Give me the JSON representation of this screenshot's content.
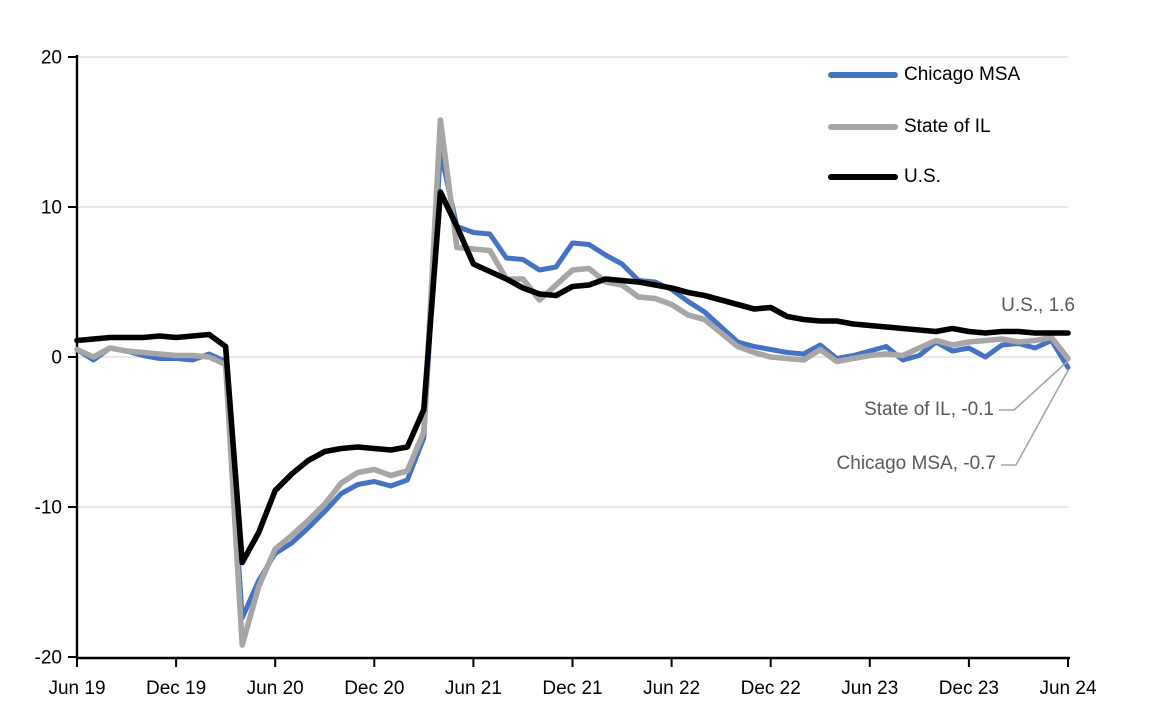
{
  "chart_data": {
    "type": "line",
    "title": "",
    "x_unit": "month",
    "x_range": [
      "Jun 2019",
      "Jun 2024"
    ],
    "x_tick_labels": [
      "Jun 19",
      "Dec 19",
      "Jun 20",
      "Dec 20",
      "Jun 21",
      "Dec 21",
      "Jun 22",
      "Dec 22",
      "Jun 23",
      "Dec 23",
      "Jun 24"
    ],
    "ylim": [
      -20,
      20
    ],
    "y_ticks": [
      20,
      10,
      0,
      -10,
      -20
    ],
    "grid": "horizontal",
    "legend_position": "top-right",
    "series": [
      {
        "name": "Chicago MSA",
        "color": "#4472C4",
        "values": [
          0.5,
          -0.2,
          0.6,
          0.4,
          0.1,
          -0.1,
          -0.1,
          -0.2,
          0.2,
          -0.3,
          -17.4,
          -14.9,
          -13.1,
          -12.4,
          -11.4,
          -10.3,
          -9.1,
          -8.5,
          -8.3,
          -8.6,
          -8.2,
          -5.4,
          13.7,
          8.7,
          8.3,
          8.2,
          6.6,
          6.5,
          5.8,
          6.0,
          7.6,
          7.5,
          6.8,
          6.2,
          5.1,
          5.0,
          4.5,
          3.7,
          3.0,
          2.0,
          1.0,
          0.7,
          0.5,
          0.3,
          0.2,
          0.8,
          -0.1,
          0.1,
          0.4,
          0.7,
          -0.2,
          0.1,
          1.0,
          0.4,
          0.6,
          0.0,
          0.8,
          0.9,
          0.6,
          1.1,
          -0.7
        ]
      },
      {
        "name": "State of IL",
        "color": "#A6A6A6",
        "values": [
          0.5,
          0.0,
          0.6,
          0.4,
          0.3,
          0.2,
          0.1,
          0.1,
          0.0,
          -0.5,
          -19.2,
          -15.3,
          -12.8,
          -11.9,
          -10.9,
          -9.8,
          -8.4,
          -7.7,
          -7.5,
          -7.9,
          -7.6,
          -5.0,
          15.8,
          7.3,
          7.2,
          7.1,
          5.2,
          5.2,
          3.8,
          4.8,
          5.8,
          5.9,
          5.0,
          4.8,
          4.0,
          3.9,
          3.5,
          2.8,
          2.5,
          1.6,
          0.7,
          0.3,
          0.0,
          -0.1,
          -0.2,
          0.5,
          -0.3,
          -0.1,
          0.1,
          0.2,
          0.1,
          0.6,
          1.1,
          0.8,
          1.0,
          1.1,
          1.2,
          1.0,
          1.1,
          1.3,
          -0.1
        ]
      },
      {
        "name": "U.S.",
        "color": "#000000",
        "values": [
          1.1,
          1.2,
          1.3,
          1.3,
          1.3,
          1.4,
          1.3,
          1.4,
          1.5,
          0.7,
          -13.7,
          -11.7,
          -8.9,
          -7.8,
          -6.9,
          -6.3,
          -6.1,
          -6.0,
          -6.1,
          -6.2,
          -6.0,
          -3.5,
          11.0,
          8.7,
          6.2,
          5.7,
          5.2,
          4.6,
          4.2,
          4.1,
          4.7,
          4.8,
          5.2,
          5.1,
          5.0,
          4.8,
          4.6,
          4.3,
          4.1,
          3.8,
          3.5,
          3.2,
          3.3,
          2.7,
          2.5,
          2.4,
          2.4,
          2.2,
          2.1,
          2.0,
          1.9,
          1.8,
          1.7,
          1.9,
          1.7,
          1.6,
          1.7,
          1.7,
          1.6,
          1.6,
          1.6
        ]
      }
    ],
    "annotations": [
      {
        "text": "U.S., 1.6",
        "series": "U.S.",
        "value": 1.6
      },
      {
        "text": "State of IL, -0.1",
        "series": "State of IL",
        "value": -0.1
      },
      {
        "text": "Chicago MSA, -0.7",
        "series": "Chicago MSA",
        "value": -0.7
      }
    ]
  },
  "colors": {
    "background": "#FFFFFF",
    "gridline": "#D9D9D9",
    "axis": "#000000",
    "tick_label": "#000000",
    "annotation_text": "#595959",
    "leader_line": "#A6A6A6"
  }
}
